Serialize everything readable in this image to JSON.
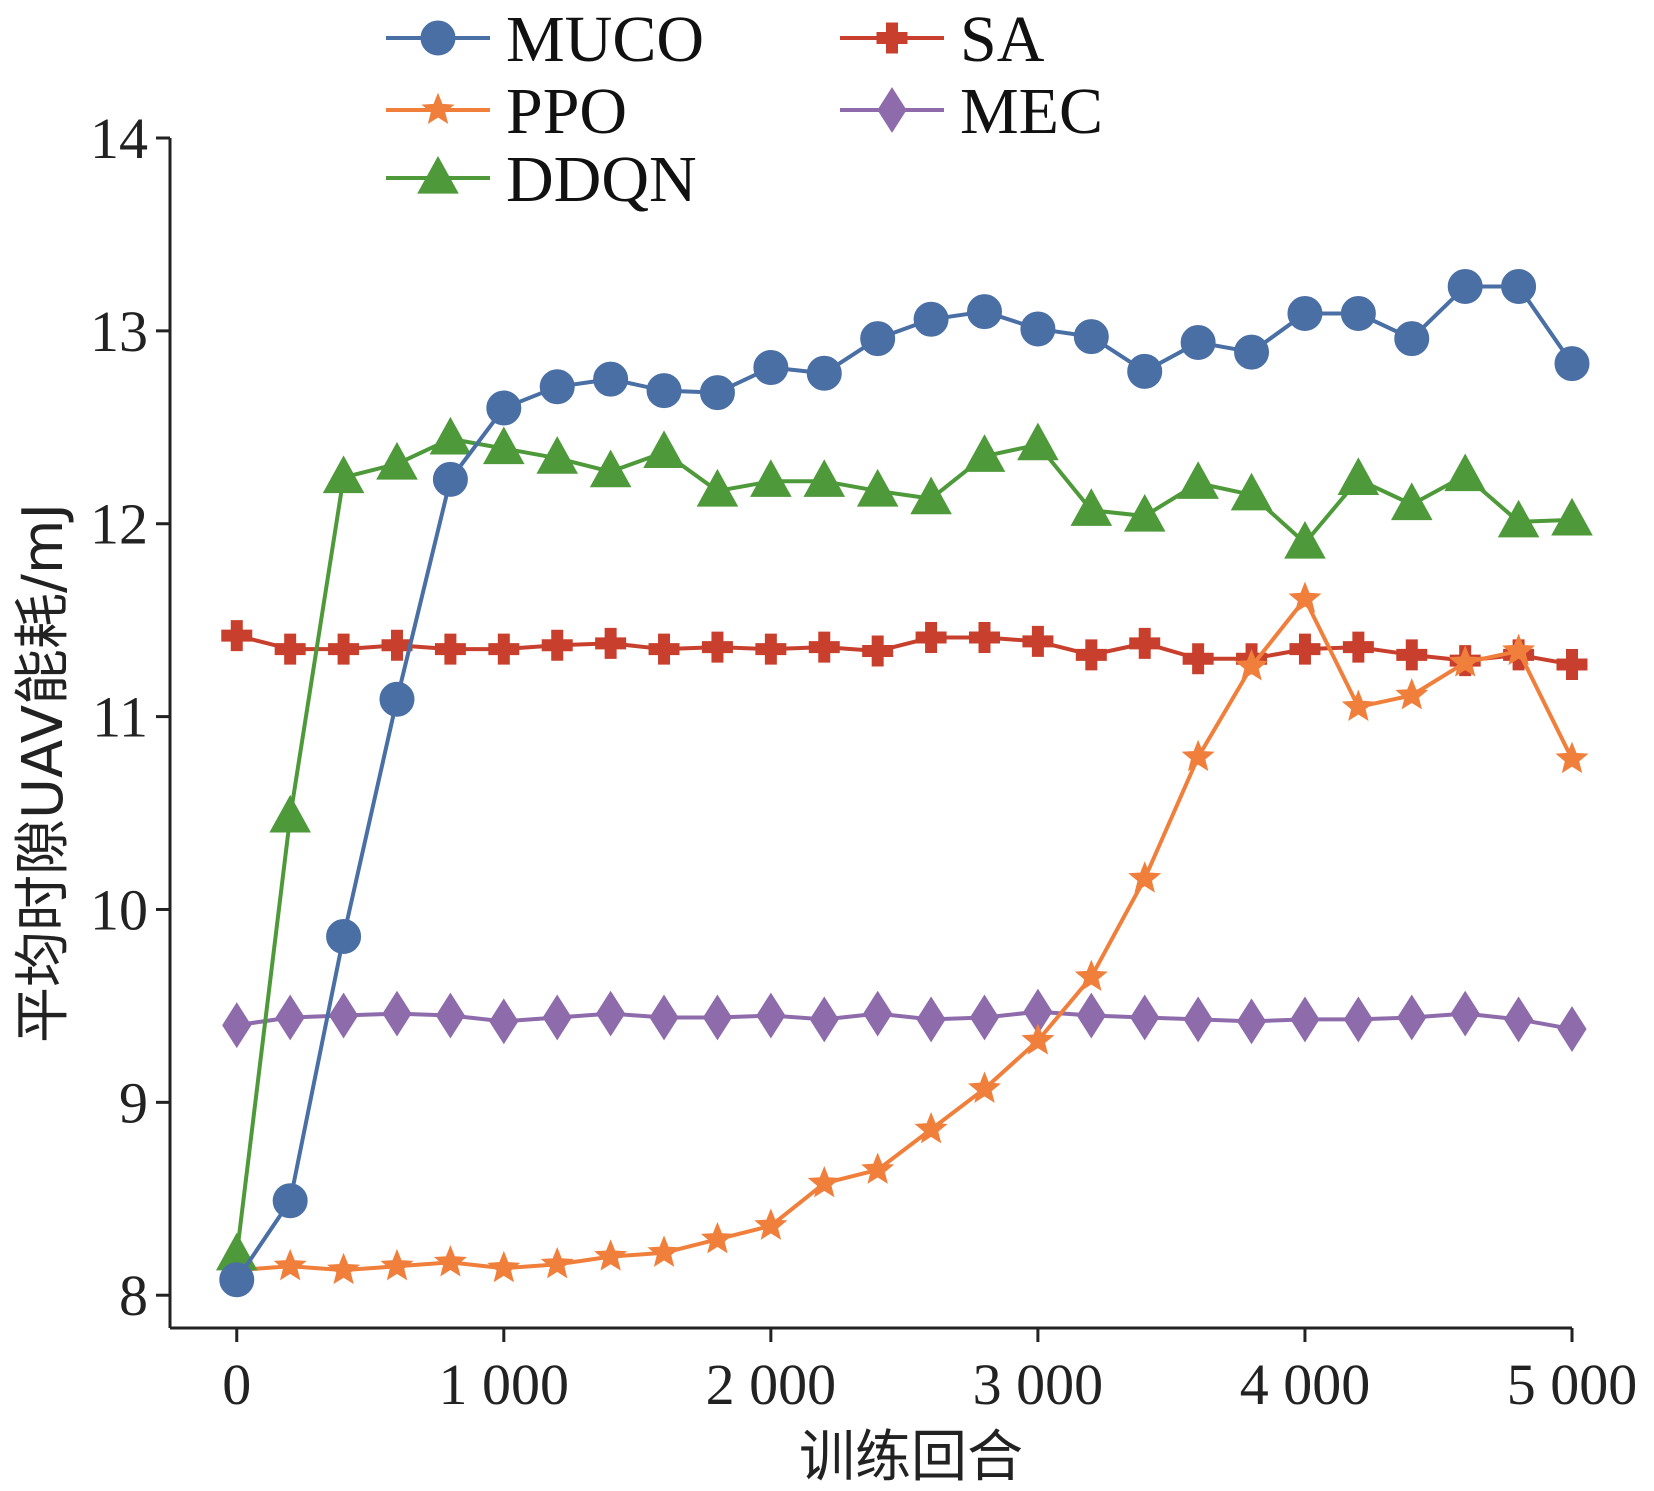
{
  "chart_data": {
    "type": "line",
    "title": "",
    "xlabel": "训练回合",
    "ylabel": "平均时隙UAV能耗/mJ",
    "xlim": [
      -250,
      5000
    ],
    "ylim": [
      7.83,
      14
    ],
    "x_ticks": [
      0,
      1000,
      2000,
      3000,
      4000,
      5000
    ],
    "x_tick_labels": [
      "0",
      "1 000",
      "2 000",
      "3 000",
      "4 000",
      "5 000"
    ],
    "y_ticks": [
      8,
      9,
      10,
      11,
      12,
      13,
      14
    ],
    "y_tick_labels": [
      "8",
      "9",
      "10",
      "11",
      "12",
      "13",
      "14"
    ],
    "grid": false,
    "legend_position": "top",
    "x": [
      0,
      200,
      400,
      600,
      800,
      1000,
      1200,
      1400,
      1600,
      1800,
      2000,
      2200,
      2400,
      2600,
      2800,
      3000,
      3200,
      3400,
      3600,
      3800,
      4000,
      4200,
      4400,
      4600,
      4800,
      5000
    ],
    "series": [
      {
        "name": "MUCO",
        "color": "#4a6fa5",
        "marker": "circle",
        "values": [
          8.08,
          8.49,
          9.86,
          11.09,
          12.23,
          12.6,
          12.71,
          12.75,
          12.69,
          12.68,
          12.81,
          12.78,
          12.96,
          13.06,
          13.1,
          13.01,
          12.97,
          12.79,
          12.94,
          12.89,
          13.09,
          13.09,
          12.96,
          13.23,
          13.23,
          12.83
        ]
      },
      {
        "name": "PPO",
        "color": "#f07f3c",
        "marker": "star",
        "values": [
          8.13,
          8.15,
          8.13,
          8.15,
          8.17,
          8.14,
          8.16,
          8.2,
          8.22,
          8.29,
          8.36,
          8.58,
          8.65,
          8.86,
          9.07,
          9.32,
          9.65,
          10.16,
          10.79,
          11.26,
          11.61,
          11.05,
          11.11,
          11.28,
          11.34,
          10.78
        ]
      },
      {
        "name": "DDQN",
        "color": "#4e9a3a",
        "marker": "triangle",
        "values": [
          8.21,
          10.48,
          12.24,
          12.31,
          12.44,
          12.39,
          12.34,
          12.27,
          12.37,
          12.17,
          12.22,
          12.22,
          12.17,
          12.13,
          12.35,
          12.41,
          12.07,
          12.04,
          12.21,
          12.15,
          11.9,
          12.23,
          12.1,
          12.25,
          12.01,
          12.02
        ]
      },
      {
        "name": "SA",
        "color": "#c8402d",
        "marker": "plus",
        "values": [
          11.42,
          11.35,
          11.35,
          11.37,
          11.35,
          11.35,
          11.37,
          11.38,
          11.35,
          11.36,
          11.35,
          11.36,
          11.34,
          11.41,
          11.41,
          11.39,
          11.32,
          11.38,
          11.3,
          11.3,
          11.35,
          11.36,
          11.32,
          11.29,
          11.32,
          11.27
        ]
      },
      {
        "name": "MEC",
        "color": "#8e6bab",
        "marker": "diamond",
        "values": [
          9.4,
          9.44,
          9.45,
          9.46,
          9.45,
          9.42,
          9.44,
          9.46,
          9.44,
          9.44,
          9.45,
          9.43,
          9.46,
          9.43,
          9.44,
          9.47,
          9.45,
          9.44,
          9.43,
          9.42,
          9.43,
          9.43,
          9.44,
          9.46,
          9.43,
          9.38
        ]
      }
    ]
  }
}
